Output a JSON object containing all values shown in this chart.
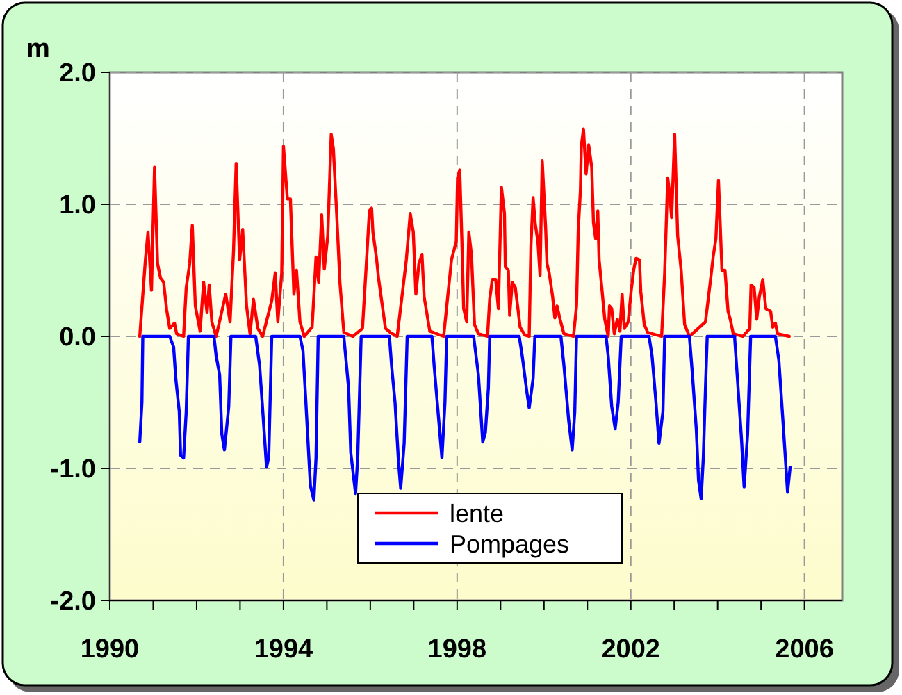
{
  "chart_data": {
    "type": "line",
    "ylabel": "m",
    "xlim": [
      1990,
      2006.87
    ],
    "xticks": [
      {
        "value": 1990,
        "label": "1990"
      },
      {
        "value": 1991,
        "label": null
      },
      {
        "value": 1992,
        "label": null
      },
      {
        "value": 1993,
        "label": null
      },
      {
        "value": 1994,
        "label": "1994"
      },
      {
        "value": 1995,
        "label": null
      },
      {
        "value": 1996,
        "label": null
      },
      {
        "value": 1997,
        "label": null
      },
      {
        "value": 1998,
        "label": "1998"
      },
      {
        "value": 1999,
        "label": null
      },
      {
        "value": 2000,
        "label": null
      },
      {
        "value": 2001,
        "label": null
      },
      {
        "value": 2002,
        "label": "2002"
      },
      {
        "value": 2003,
        "label": null
      },
      {
        "value": 2004,
        "label": null
      },
      {
        "value": 2005,
        "label": null
      },
      {
        "value": 2006,
        "label": "2006"
      }
    ],
    "ylim": [
      -2,
      2
    ],
    "yticks": [
      {
        "value": -2,
        "label": "-2.0"
      },
      {
        "value": -1,
        "label": "-1.0"
      },
      {
        "value": 0,
        "label": "0.0"
      },
      {
        "value": 1,
        "label": "1.0"
      },
      {
        "value": 2,
        "label": "2.0"
      }
    ],
    "grid": true,
    "legend": "bottom",
    "marker": "none",
    "line_style": "solid",
    "series": [
      {
        "name": "lente",
        "color": "#ff0000",
        "x": [
          1990.69,
          1990.82,
          1990.88,
          1990.96,
          1991.03,
          1991.1,
          1991.17,
          1991.24,
          1991.31,
          1991.38,
          1991.49,
          1991.54,
          1991.7,
          1991.76,
          1991.84,
          1991.9,
          1991.97,
          1992.08,
          1992.16,
          1992.24,
          1992.29,
          1992.35,
          1992.45,
          1992.67,
          1992.77,
          1992.85,
          1992.91,
          1992.99,
          1993.06,
          1993.15,
          1993.23,
          1993.31,
          1993.41,
          1993.52,
          1993.73,
          1993.81,
          1993.87,
          1993.96,
          1994.0,
          1994.09,
          1994.16,
          1994.24,
          1994.3,
          1994.38,
          1994.48,
          1994.66,
          1994.75,
          1994.81,
          1994.88,
          1994.94,
          1995.02,
          1995.1,
          1995.15,
          1995.23,
          1995.3,
          1995.39,
          1995.6,
          1995.82,
          1995.9,
          1995.98,
          1996.03,
          1996.06,
          1996.14,
          1996.19,
          1996.35,
          1996.46,
          1996.62,
          1996.83,
          1996.92,
          1996.99,
          1997.05,
          1997.12,
          1997.19,
          1997.24,
          1997.37,
          1997.69,
          1997.87,
          1997.98,
          1998.01,
          1998.06,
          1998.11,
          1998.15,
          1998.22,
          1998.27,
          1998.33,
          1998.4,
          1998.49,
          1998.7,
          1998.75,
          1998.81,
          1998.89,
          1998.95,
          1999.02,
          1999.09,
          1999.11,
          1999.18,
          1999.21,
          1999.27,
          1999.34,
          1999.4,
          1999.45,
          1999.56,
          1999.66,
          1999.7,
          1999.75,
          1999.8,
          1999.86,
          1999.91,
          1999.96,
          2000.04,
          2000.07,
          2000.12,
          2000.2,
          2000.25,
          2000.3,
          2000.37,
          2000.46,
          2000.68,
          2000.75,
          2000.79,
          2000.84,
          2000.86,
          2000.91,
          2000.97,
          2001.03,
          2001.1,
          2001.14,
          2001.19,
          2001.24,
          2001.27,
          2001.32,
          2001.4,
          2001.48,
          2001.51,
          2001.56,
          2001.62,
          2001.69,
          2001.75,
          2001.8,
          2001.85,
          2001.94,
          2002.01,
          2002.07,
          2002.12,
          2002.2,
          2002.23,
          2002.31,
          2002.39,
          2002.71,
          2002.78,
          2002.85,
          2002.9,
          2002.94,
          2003.01,
          2003.08,
          2003.16,
          2003.24,
          2003.35,
          2003.72,
          2003.83,
          2003.9,
          2003.96,
          2004.02,
          2004.1,
          2004.17,
          2004.24,
          2004.29,
          2004.36,
          2004.58,
          2004.74,
          2004.77,
          2004.84,
          2004.9,
          2004.96,
          2005.04,
          2005.11,
          2005.22,
          2005.27,
          2005.33,
          2005.38,
          2005.65
        ],
        "values": [
          0,
          0.58,
          0.79,
          0.35,
          1.28,
          0.55,
          0.44,
          0.41,
          0.2,
          0.06,
          0.1,
          0.02,
          0,
          0.37,
          0.55,
          0.84,
          0.23,
          0.04,
          0.41,
          0.18,
          0.39,
          0.11,
          0,
          0.32,
          0.11,
          0.65,
          1.31,
          0.58,
          0.81,
          0.23,
          0.02,
          0.28,
          0.06,
          0,
          0.27,
          0.48,
          0.11,
          0.48,
          1.44,
          1.04,
          1.04,
          0.32,
          0.5,
          0.11,
          0,
          0.07,
          0.6,
          0.41,
          0.92,
          0.51,
          0.76,
          1.53,
          1.42,
          0.9,
          0.41,
          0.03,
          0,
          0.06,
          0.5,
          0.95,
          0.97,
          0.79,
          0.6,
          0.44,
          0.06,
          0.03,
          0,
          0.58,
          0.93,
          0.79,
          0.32,
          0.55,
          0.62,
          0.3,
          0.04,
          0,
          0.58,
          0.72,
          1.2,
          1.26,
          0.72,
          0.21,
          0.11,
          0.79,
          0.62,
          0.09,
          0.02,
          0,
          0.28,
          0.43,
          0.43,
          0.21,
          1.13,
          0.93,
          0.53,
          0.5,
          0.16,
          0.41,
          0.37,
          0.21,
          0.07,
          0.01,
          0,
          0.69,
          1.05,
          0.85,
          0.72,
          0.46,
          1.33,
          0.81,
          0.55,
          0.48,
          0.3,
          0.14,
          0.23,
          0.13,
          0.02,
          0,
          0.23,
          0.81,
          1.11,
          1.44,
          1.57,
          1.23,
          1.45,
          1.28,
          0.86,
          0.74,
          0.95,
          0.58,
          0.41,
          0.13,
          0,
          0.23,
          0.21,
          0.02,
          0.13,
          0.04,
          0.32,
          0.06,
          0.11,
          0.35,
          0.51,
          0.59,
          0.58,
          0.34,
          0.09,
          0.03,
          0,
          0.48,
          1.2,
          1.07,
          0.9,
          1.53,
          0.76,
          0.5,
          0.09,
          0,
          0.11,
          0.41,
          0.61,
          0.74,
          1.18,
          0.5,
          0.5,
          0.19,
          0.13,
          0.02,
          0,
          0.06,
          0.39,
          0.37,
          0.13,
          0.3,
          0.43,
          0.21,
          0.19,
          0.07,
          0.1,
          0.02,
          0
        ]
      },
      {
        "name": "Pompages",
        "color": "#0000ff",
        "x": [
          1990.69,
          1990.74,
          1990.76,
          1991.38,
          1991.47,
          1991.52,
          1991.6,
          1991.63,
          1991.7,
          1991.76,
          1991.81,
          1992.4,
          1992.45,
          1992.53,
          1992.58,
          1992.64,
          1992.74,
          1992.79,
          1993.36,
          1993.45,
          1993.52,
          1993.61,
          1993.66,
          1993.73,
          1994.38,
          1994.45,
          1994.51,
          1994.62,
          1994.7,
          1994.75,
          1994.8,
          1995.39,
          1995.5,
          1995.55,
          1995.66,
          1995.71,
          1995.79,
          1996.44,
          1996.49,
          1996.57,
          1996.65,
          1996.7,
          1996.78,
          1996.85,
          1997.42,
          1997.47,
          1997.56,
          1997.65,
          1997.72,
          1997.76,
          1998.38,
          1998.49,
          1998.59,
          1998.65,
          1998.72,
          1998.75,
          1999.43,
          1999.5,
          1999.61,
          1999.66,
          1999.75,
          1999.79,
          2000.39,
          2000.46,
          2000.57,
          2000.65,
          2000.71,
          2000.75,
          2001.43,
          2001.48,
          2001.56,
          2001.64,
          2001.71,
          2001.78,
          2002.42,
          2002.49,
          2002.58,
          2002.65,
          2002.74,
          2002.78,
          2003.35,
          2003.42,
          2003.51,
          2003.56,
          2003.62,
          2003.67,
          2003.72,
          2003.76,
          2004.39,
          2004.45,
          2004.55,
          2004.61,
          2004.69,
          2004.76,
          2005.33,
          2005.41,
          2005.49,
          2005.56,
          2005.61,
          2005.67
        ],
        "values": [
          -0.8,
          -0.5,
          0,
          0,
          -0.08,
          -0.32,
          -0.57,
          -0.9,
          -0.92,
          -0.57,
          0,
          0,
          -0.15,
          -0.29,
          -0.74,
          -0.86,
          -0.53,
          0,
          0,
          -0.22,
          -0.55,
          -0.99,
          -0.92,
          0,
          0,
          -0.11,
          -0.46,
          -1.13,
          -1.24,
          -0.92,
          0,
          0,
          -0.39,
          -0.88,
          -1.19,
          -0.92,
          0,
          0,
          -0.22,
          -0.5,
          -0.95,
          -1.15,
          -0.81,
          0,
          0,
          -0.22,
          -0.57,
          -0.92,
          -0.5,
          0,
          0,
          -0.29,
          -0.8,
          -0.73,
          -0.39,
          0,
          0,
          -0.15,
          -0.43,
          -0.54,
          -0.32,
          0,
          0,
          -0.22,
          -0.64,
          -0.86,
          -0.57,
          0,
          0,
          -0.15,
          -0.53,
          -0.7,
          -0.5,
          0,
          0,
          -0.15,
          -0.5,
          -0.81,
          -0.57,
          0,
          0,
          -0.29,
          -0.71,
          -1.09,
          -1.23,
          -0.92,
          -0.39,
          0,
          0,
          -0.29,
          -0.78,
          -1.14,
          -0.74,
          0,
          0,
          -0.18,
          -0.57,
          -0.92,
          -1.18,
          -0.99
        ]
      }
    ]
  }
}
